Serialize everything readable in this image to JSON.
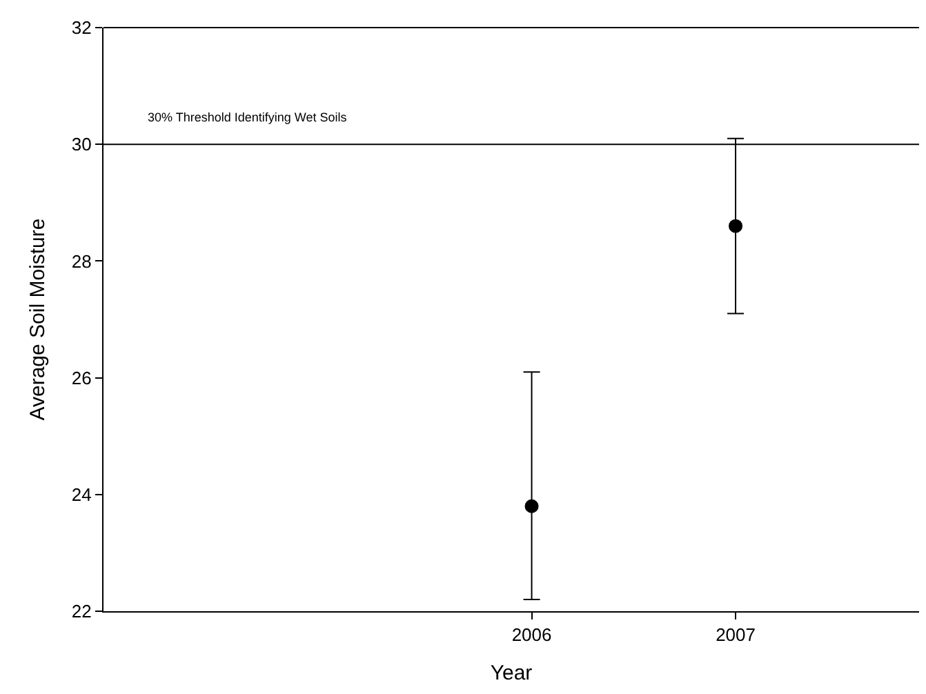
{
  "chart_data": {
    "type": "scatter",
    "xlabel": "Year",
    "ylabel": "Average Soil Moisture",
    "x": [
      2006,
      2007
    ],
    "values": [
      23.8,
      28.6
    ],
    "errors": [
      [
        22.2,
        26.1
      ],
      [
        27.1,
        30.1
      ]
    ],
    "color": "#000000",
    "marker": "circle",
    "xlim": [
      2003.9,
      2007.9
    ],
    "xticks": [
      2006,
      2007
    ],
    "ylim": [
      22,
      32
    ],
    "yticks": [
      22,
      24,
      26,
      28,
      30,
      32
    ],
    "ref_lines": [
      {
        "axis": "y",
        "value": 30,
        "label": "30% Threshold Identifying Wet Soils",
        "color": "#000000"
      }
    ],
    "legend": false
  }
}
